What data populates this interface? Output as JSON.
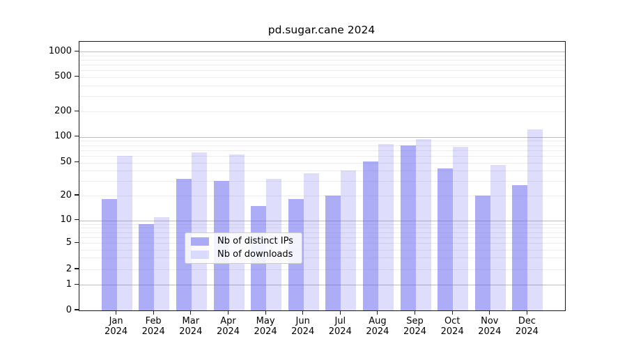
{
  "chart_data": {
    "type": "bar",
    "title": "pd.sugar.cane 2024",
    "categories": [
      "Jan",
      "Feb",
      "Mar",
      "Apr",
      "May",
      "Jun",
      "Jul",
      "Aug",
      "Sep",
      "Oct",
      "Nov",
      "Dec"
    ],
    "category_year": "2024",
    "series": [
      {
        "name": "Nb of distinct IPs",
        "color": "rgba(90,90,240,0.5)",
        "values": [
          18,
          9,
          32,
          30,
          15,
          18,
          20,
          52,
          79,
          43,
          20,
          27
        ]
      },
      {
        "name": "Nb of downloads",
        "color": "rgba(90,90,240,0.2)",
        "values": [
          60,
          11,
          66,
          62,
          32,
          37,
          40,
          83,
          95,
          77,
          47,
          123
        ]
      }
    ],
    "yscale": "log-like with linear 0-1 segment",
    "y_ticks": [
      0,
      1,
      2,
      5,
      10,
      20,
      50,
      100,
      200,
      500,
      1000
    ],
    "ylim": [
      0,
      1260
    ],
    "grid": true,
    "legend_position": "lower center"
  }
}
